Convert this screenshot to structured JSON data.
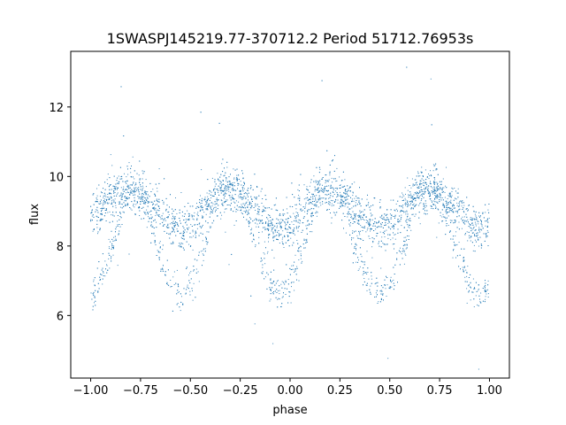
{
  "chart_data": {
    "type": "scatter",
    "title": "1SWASPJ145219.77-370712.2 Period 51712.76953s",
    "xlabel": "phase",
    "ylabel": "flux",
    "xlim": [
      -1.1,
      1.1
    ],
    "ylim": [
      4.2,
      13.6
    ],
    "x_ticks": [
      -1.0,
      -0.75,
      -0.5,
      -0.25,
      0.0,
      0.25,
      0.5,
      0.75,
      1.0
    ],
    "x_tick_labels": [
      "−1.00",
      "−0.75",
      "−0.50",
      "−0.25",
      "0.00",
      "0.25",
      "0.50",
      "0.75",
      "1.00"
    ],
    "y_ticks": [
      6,
      8,
      10,
      12
    ],
    "y_tick_labels": [
      "6",
      "8",
      "10",
      "12"
    ],
    "grid": false,
    "legend": "none",
    "marker_color": "#1f77b4",
    "series": [
      {
        "phase": [
          -1.0,
          -0.95,
          -0.9,
          -0.85,
          -0.8,
          -0.75,
          -0.7,
          -0.65,
          -0.6,
          -0.55,
          -0.5,
          -0.45,
          -0.4,
          -0.35,
          -0.3,
          -0.25,
          -0.2,
          -0.15,
          -0.1,
          -0.05,
          0.0,
          0.05,
          0.1,
          0.15,
          0.2,
          0.25,
          0.3,
          0.35,
          0.4,
          0.45,
          0.5,
          0.55,
          0.6,
          0.65,
          0.7,
          0.75,
          0.8,
          0.85,
          0.9,
          0.95,
          1.0
        ],
        "flux_upper_band": [
          8.9,
          9.1,
          9.4,
          9.6,
          9.6,
          9.5,
          9.2,
          8.9,
          8.6,
          8.5,
          8.6,
          8.9,
          9.3,
          9.6,
          9.6,
          9.5,
          9.2,
          8.9,
          8.6,
          8.5,
          8.6,
          8.9,
          9.3,
          9.6,
          9.6,
          9.5,
          9.2,
          8.9,
          8.6,
          8.5,
          8.6,
          8.9,
          9.3,
          9.6,
          9.6,
          9.5,
          9.2,
          8.9,
          8.6,
          8.5,
          8.6
        ],
        "flux_lower_branch_min": 6.5,
        "flux_lower_branch_phases": [
          -1.0,
          -0.55,
          -0.05,
          0.45,
          0.95
        ]
      }
    ]
  }
}
